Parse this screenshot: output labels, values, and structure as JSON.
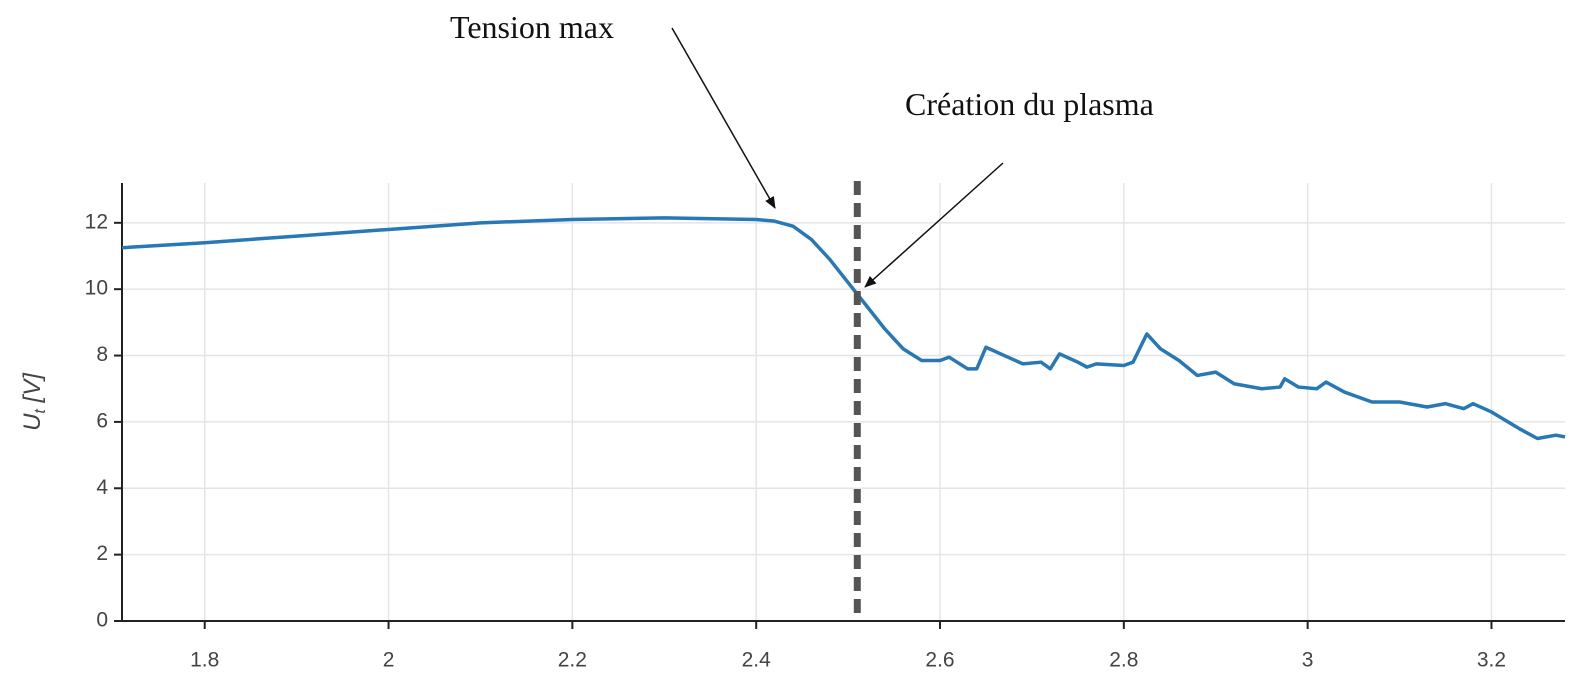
{
  "chart_data": {
    "type": "line",
    "ylabel": {
      "symbol": "U",
      "subscript": "t",
      "unit": "[V]"
    },
    "x": [
      1.71,
      1.8,
      1.9,
      2.0,
      2.1,
      2.2,
      2.3,
      2.4,
      2.42,
      2.44,
      2.46,
      2.48,
      2.5,
      2.52,
      2.54,
      2.56,
      2.58,
      2.6,
      2.61,
      2.63,
      2.64,
      2.65,
      2.67,
      2.69,
      2.71,
      2.72,
      2.73,
      2.75,
      2.76,
      2.77,
      2.8,
      2.81,
      2.825,
      2.84,
      2.86,
      2.88,
      2.9,
      2.92,
      2.95,
      2.97,
      2.975,
      2.99,
      3.01,
      3.02,
      3.04,
      3.07,
      3.1,
      3.13,
      3.15,
      3.17,
      3.18,
      3.2,
      3.23,
      3.25,
      3.27,
      3.28
    ],
    "series": [
      {
        "color": "#2878b5",
        "values": [
          11.25,
          11.4,
          11.6,
          11.8,
          12.0,
          12.1,
          12.15,
          12.1,
          12.05,
          11.9,
          11.5,
          10.9,
          10.2,
          9.5,
          8.8,
          8.2,
          7.85,
          7.85,
          7.95,
          7.6,
          7.6,
          8.25,
          8.0,
          7.75,
          7.8,
          7.6,
          8.05,
          7.8,
          7.65,
          7.75,
          7.7,
          7.8,
          8.65,
          8.2,
          7.85,
          7.4,
          7.5,
          7.15,
          7.0,
          7.05,
          7.3,
          7.05,
          7.0,
          7.2,
          6.9,
          6.6,
          6.6,
          6.45,
          6.55,
          6.4,
          6.55,
          6.3,
          5.8,
          5.5,
          5.6,
          5.55
        ]
      }
    ],
    "vline": {
      "x": 2.51,
      "color": "#555555"
    },
    "annotations": [
      "Tension max",
      "Création du plasma"
    ],
    "xlim": [
      1.71,
      3.28
    ],
    "xticks": [
      1.8,
      2,
      2.2,
      2.4,
      2.6,
      2.8,
      3,
      3.2
    ],
    "ylim": [
      0,
      13.2
    ],
    "yticks": [
      0,
      2,
      4,
      6,
      8,
      10,
      12
    ],
    "grid": true
  }
}
